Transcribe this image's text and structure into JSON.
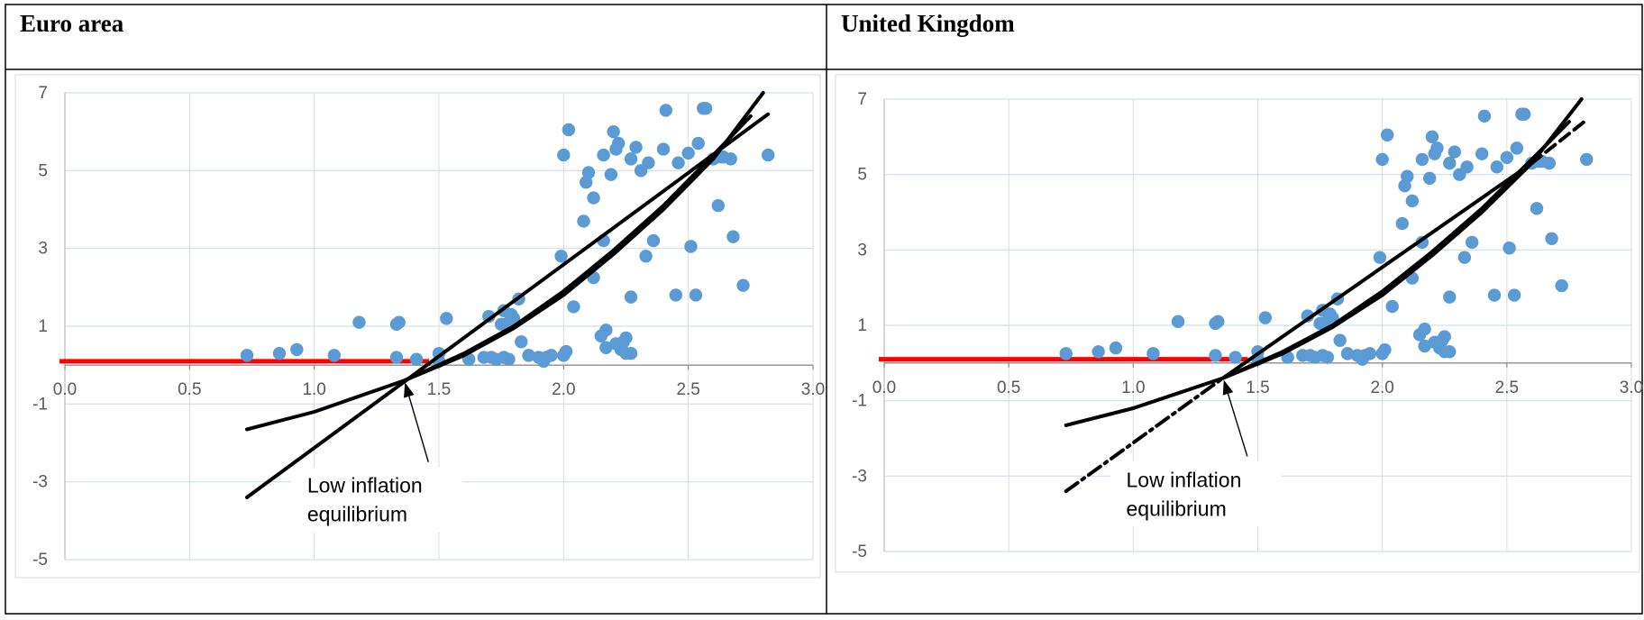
{
  "panels": [
    {
      "title": "Euro area",
      "chart_data": {
        "type": "scatter",
        "title": "",
        "xlim": [
          0,
          3
        ],
        "ylim": [
          -5,
          7
        ],
        "x_ticks": [
          "0.0",
          "0.5",
          "1.0",
          "1.5",
          "2.0",
          "2.5",
          "3.0"
        ],
        "y_ticks": [
          "7",
          "5",
          "3",
          "1",
          "-1",
          "-3",
          "-5"
        ],
        "grid": true,
        "annotation": {
          "lines": [
            "Low inflation",
            "equilibrium"
          ],
          "point": [
            1.36,
            -0.4
          ]
        },
        "red_line": {
          "x": [
            0,
            1.46
          ],
          "y": [
            0.1,
            0.1
          ]
        },
        "lines": [
          {
            "style": "solid",
            "x": [
              0.73,
              2.82
            ],
            "y": [
              -3.4,
              6.45
            ]
          },
          {
            "style": "solid",
            "x": [
              0.73,
              1.0,
              1.36,
              1.6,
              1.8,
              2.0,
              2.2,
              2.4,
              2.6,
              2.8
            ],
            "y": [
              -1.65,
              -1.2,
              -0.4,
              0.25,
              0.95,
              1.8,
              2.85,
              4.0,
              5.3,
              7.0
            ]
          },
          {
            "style": "solid",
            "x": [
              1.36,
              1.6,
              1.8,
              2.0,
              2.2,
              2.4,
              2.6,
              2.75
            ],
            "y": [
              -0.4,
              0.3,
              1.0,
              1.9,
              2.95,
              4.1,
              5.4,
              6.4
            ]
          }
        ],
        "points": [
          [
            0.73,
            0.25
          ],
          [
            0.86,
            0.3
          ],
          [
            0.93,
            0.4
          ],
          [
            1.08,
            0.25
          ],
          [
            1.18,
            1.1
          ],
          [
            1.33,
            1.05
          ],
          [
            1.34,
            1.1
          ],
          [
            1.33,
            0.2
          ],
          [
            1.41,
            0.15
          ],
          [
            1.5,
            0.1
          ],
          [
            1.5,
            0.3
          ],
          [
            1.53,
            1.2
          ],
          [
            1.62,
            0.15
          ],
          [
            1.68,
            0.2
          ],
          [
            1.7,
            1.25
          ],
          [
            1.71,
            0.2
          ],
          [
            1.73,
            0.15
          ],
          [
            1.75,
            1.05
          ],
          [
            1.76,
            1.4
          ],
          [
            1.76,
            0.2
          ],
          [
            1.78,
            1.1
          ],
          [
            1.78,
            0.15
          ],
          [
            1.79,
            1.3
          ],
          [
            1.8,
            1.2
          ],
          [
            1.82,
            1.7
          ],
          [
            1.83,
            0.6
          ],
          [
            1.86,
            0.25
          ],
          [
            1.9,
            0.2
          ],
          [
            1.92,
            0.1
          ],
          [
            1.93,
            0.2
          ],
          [
            1.95,
            0.25
          ],
          [
            1.99,
            2.8
          ],
          [
            2.0,
            5.4
          ],
          [
            2.0,
            0.25
          ],
          [
            2.01,
            0.35
          ],
          [
            2.02,
            6.05
          ],
          [
            2.04,
            1.5
          ],
          [
            2.08,
            3.7
          ],
          [
            2.09,
            4.7
          ],
          [
            2.1,
            4.95
          ],
          [
            2.12,
            4.3
          ],
          [
            2.12,
            2.25
          ],
          [
            2.15,
            0.75
          ],
          [
            2.16,
            5.4
          ],
          [
            2.16,
            3.2
          ],
          [
            2.17,
            0.9
          ],
          [
            2.17,
            0.45
          ],
          [
            2.19,
            4.9
          ],
          [
            2.2,
            6.0
          ],
          [
            2.21,
            5.55
          ],
          [
            2.22,
            5.7
          ],
          [
            2.21,
            0.55
          ],
          [
            2.23,
            0.4
          ],
          [
            2.24,
            0.6
          ],
          [
            2.25,
            0.7
          ],
          [
            2.25,
            0.3
          ],
          [
            2.27,
            5.3
          ],
          [
            2.27,
            1.75
          ],
          [
            2.27,
            0.3
          ],
          [
            2.29,
            5.6
          ],
          [
            2.31,
            5.0
          ],
          [
            2.33,
            2.8
          ],
          [
            2.34,
            5.2
          ],
          [
            2.36,
            3.2
          ],
          [
            2.4,
            5.55
          ],
          [
            2.41,
            6.55
          ],
          [
            2.45,
            1.8
          ],
          [
            2.46,
            5.2
          ],
          [
            2.5,
            5.45
          ],
          [
            2.51,
            3.05
          ],
          [
            2.53,
            1.8
          ],
          [
            2.54,
            5.7
          ],
          [
            2.56,
            6.6
          ],
          [
            2.57,
            6.6
          ],
          [
            2.6,
            5.3
          ],
          [
            2.62,
            4.1
          ],
          [
            2.63,
            5.35
          ],
          [
            2.64,
            5.35
          ],
          [
            2.67,
            5.3
          ],
          [
            2.68,
            3.3
          ],
          [
            2.72,
            2.05
          ],
          [
            2.82,
            5.4
          ]
        ]
      }
    },
    {
      "title": "United Kingdom",
      "chart_data": {
        "type": "scatter",
        "title": "",
        "xlim": [
          0,
          3
        ],
        "ylim": [
          -5,
          7
        ],
        "x_ticks": [
          "0.0",
          "0.5",
          "1.0",
          "1.5",
          "2.0",
          "2.5",
          "3.0"
        ],
        "y_ticks": [
          "7",
          "5",
          "3",
          "1",
          "-1",
          "-3",
          "-5"
        ],
        "grid": true,
        "annotation": {
          "lines": [
            "Low inflation",
            "equilibrium"
          ],
          "point": [
            1.36,
            -0.4
          ]
        },
        "red_line": {
          "x": [
            0,
            1.46
          ],
          "y": [
            0.1,
            0.1
          ]
        },
        "lines": [
          {
            "style": "dashdot",
            "x": [
              0.73,
              1.36
            ],
            "y": [
              -3.4,
              -0.4
            ]
          },
          {
            "style": "solid",
            "x": [
              1.36,
              2.6
            ],
            "y": [
              -0.4,
              5.3
            ]
          },
          {
            "style": "dashed",
            "x": [
              2.6,
              2.82
            ],
            "y": [
              5.3,
              6.45
            ]
          },
          {
            "style": "solid",
            "x": [
              0.73,
              1.0,
              1.36,
              1.6,
              1.8,
              2.0,
              2.2,
              2.4,
              2.6,
              2.8
            ],
            "y": [
              -1.65,
              -1.2,
              -0.4,
              0.25,
              0.95,
              1.8,
              2.85,
              4.0,
              5.3,
              7.0
            ]
          },
          {
            "style": "solid",
            "x": [
              1.36,
              1.6,
              1.8,
              2.0,
              2.2,
              2.4,
              2.6,
              2.75
            ],
            "y": [
              -0.4,
              0.3,
              1.0,
              1.9,
              2.95,
              4.1,
              5.4,
              6.4
            ]
          }
        ],
        "points": [
          [
            0.73,
            0.25
          ],
          [
            0.86,
            0.3
          ],
          [
            0.93,
            0.4
          ],
          [
            1.08,
            0.25
          ],
          [
            1.18,
            1.1
          ],
          [
            1.33,
            1.05
          ],
          [
            1.34,
            1.1
          ],
          [
            1.33,
            0.2
          ],
          [
            1.41,
            0.15
          ],
          [
            1.5,
            0.1
          ],
          [
            1.5,
            0.3
          ],
          [
            1.53,
            1.2
          ],
          [
            1.62,
            0.15
          ],
          [
            1.68,
            0.2
          ],
          [
            1.7,
            1.25
          ],
          [
            1.71,
            0.2
          ],
          [
            1.73,
            0.15
          ],
          [
            1.75,
            1.05
          ],
          [
            1.76,
            1.4
          ],
          [
            1.76,
            0.2
          ],
          [
            1.78,
            1.1
          ],
          [
            1.78,
            0.15
          ],
          [
            1.79,
            1.3
          ],
          [
            1.8,
            1.2
          ],
          [
            1.82,
            1.7
          ],
          [
            1.83,
            0.6
          ],
          [
            1.86,
            0.25
          ],
          [
            1.9,
            0.2
          ],
          [
            1.92,
            0.1
          ],
          [
            1.93,
            0.2
          ],
          [
            1.95,
            0.25
          ],
          [
            1.99,
            2.8
          ],
          [
            2.0,
            5.4
          ],
          [
            2.0,
            0.25
          ],
          [
            2.01,
            0.35
          ],
          [
            2.02,
            6.05
          ],
          [
            2.04,
            1.5
          ],
          [
            2.08,
            3.7
          ],
          [
            2.09,
            4.7
          ],
          [
            2.1,
            4.95
          ],
          [
            2.12,
            4.3
          ],
          [
            2.12,
            2.25
          ],
          [
            2.15,
            0.75
          ],
          [
            2.16,
            5.4
          ],
          [
            2.16,
            3.2
          ],
          [
            2.17,
            0.9
          ],
          [
            2.17,
            0.45
          ],
          [
            2.19,
            4.9
          ],
          [
            2.2,
            6.0
          ],
          [
            2.21,
            5.55
          ],
          [
            2.22,
            5.7
          ],
          [
            2.21,
            0.55
          ],
          [
            2.23,
            0.4
          ],
          [
            2.24,
            0.6
          ],
          [
            2.25,
            0.7
          ],
          [
            2.25,
            0.3
          ],
          [
            2.27,
            5.3
          ],
          [
            2.27,
            1.75
          ],
          [
            2.27,
            0.3
          ],
          [
            2.29,
            5.6
          ],
          [
            2.31,
            5.0
          ],
          [
            2.33,
            2.8
          ],
          [
            2.34,
            5.2
          ],
          [
            2.36,
            3.2
          ],
          [
            2.4,
            5.55
          ],
          [
            2.41,
            6.55
          ],
          [
            2.45,
            1.8
          ],
          [
            2.46,
            5.2
          ],
          [
            2.5,
            5.45
          ],
          [
            2.51,
            3.05
          ],
          [
            2.53,
            1.8
          ],
          [
            2.54,
            5.7
          ],
          [
            2.56,
            6.6
          ],
          [
            2.57,
            6.6
          ],
          [
            2.6,
            5.3
          ],
          [
            2.62,
            4.1
          ],
          [
            2.63,
            5.35
          ],
          [
            2.64,
            5.35
          ],
          [
            2.67,
            5.3
          ],
          [
            2.68,
            3.3
          ],
          [
            2.72,
            2.05
          ],
          [
            2.82,
            5.4
          ]
        ]
      }
    }
  ]
}
